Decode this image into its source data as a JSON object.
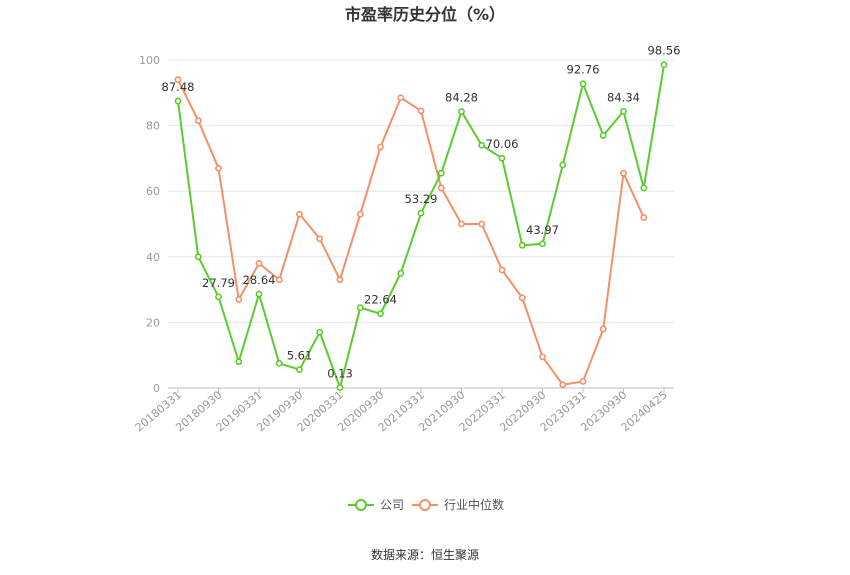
{
  "chart_data": {
    "type": "line",
    "title": "市盈率历史分位（%）",
    "ylim": [
      0,
      100
    ],
    "yticks": [
      0,
      20,
      40,
      60,
      80,
      100
    ],
    "xtick_labels": [
      "20180331",
      "20180930",
      "20190331",
      "20190930",
      "20200331",
      "20200930",
      "20210331",
      "20210930",
      "20220331",
      "20220930",
      "20230331",
      "20230930",
      "20240425"
    ],
    "x": [
      "20180331",
      "20180630",
      "20180930",
      "20181231",
      "20190331",
      "20190630",
      "20190930",
      "20191231",
      "20200331",
      "20200630",
      "20200930",
      "20201231",
      "20210331",
      "20210630",
      "20210930",
      "20211231",
      "20220331",
      "20220630",
      "20220930",
      "20221231",
      "20230331",
      "20230630",
      "20230930",
      "20231231",
      "20240425"
    ],
    "series": [
      {
        "name": "公司",
        "color": "#5ccb2e",
        "values": [
          87.48,
          40,
          27.79,
          8,
          28.64,
          7.5,
          5.61,
          17,
          0.13,
          24.5,
          22.64,
          35,
          53.29,
          65.5,
          84.28,
          74,
          70.06,
          43.5,
          43.97,
          68,
          92.76,
          77,
          84.34,
          61,
          98.56
        ],
        "labels": [
          "87.48",
          "",
          "27.79",
          "",
          "28.64",
          "",
          "5.61",
          "",
          "0.13",
          "",
          "22.64",
          "",
          "53.29",
          "",
          "84.28",
          "",
          "70.06",
          "",
          "43.97",
          "",
          "92.76",
          "",
          "84.34",
          "",
          "98.56"
        ]
      },
      {
        "name": "行业中位数",
        "color": "#f49065",
        "values": [
          94,
          81.5,
          67,
          27,
          38,
          33,
          53,
          45.5,
          33,
          53,
          73.5,
          88.5,
          84.5,
          61,
          50,
          50,
          36,
          27.5,
          9.5,
          1,
          2,
          18,
          65.5,
          52,
          null
        ],
        "labels": []
      }
    ],
    "legend_position": "bottom",
    "grid": true
  },
  "footer": {
    "source": "数据来源：恒生聚源"
  }
}
